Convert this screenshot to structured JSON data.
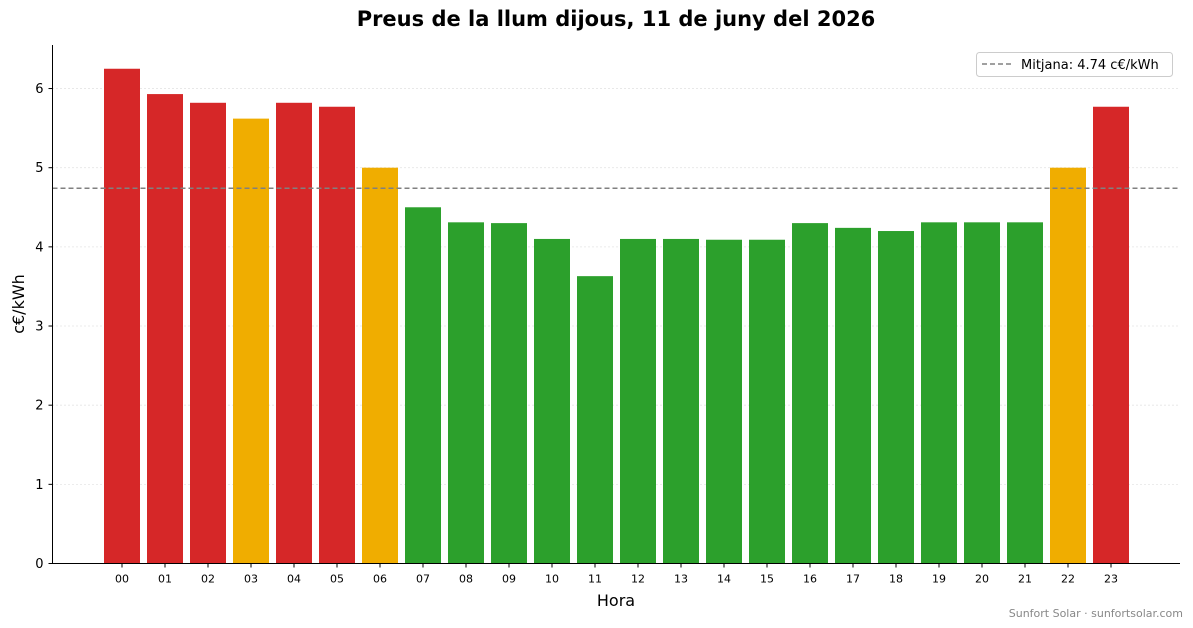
{
  "chart_data": {
    "type": "bar",
    "title": "Preus de la llum dijous, 11 de juny del 2026",
    "xlabel": "Hora",
    "ylabel": "c€/kWh",
    "ylim": [
      0,
      6.55
    ],
    "yticks": [
      0,
      1,
      2,
      3,
      4,
      5,
      6
    ],
    "categories": [
      "00",
      "01",
      "02",
      "03",
      "04",
      "05",
      "06",
      "07",
      "08",
      "09",
      "10",
      "11",
      "12",
      "13",
      "14",
      "15",
      "16",
      "17",
      "18",
      "19",
      "20",
      "21",
      "22",
      "23"
    ],
    "values": [
      6.25,
      5.93,
      5.82,
      5.62,
      5.82,
      5.77,
      5.0,
      4.5,
      4.31,
      4.3,
      4.1,
      3.63,
      4.1,
      4.1,
      4.09,
      4.09,
      4.3,
      4.24,
      4.2,
      4.31,
      4.31,
      4.31,
      5.0,
      5.77
    ],
    "bar_levels": [
      "high",
      "high",
      "high",
      "mid",
      "high",
      "high",
      "mid",
      "low",
      "low",
      "low",
      "low",
      "low",
      "low",
      "low",
      "low",
      "low",
      "low",
      "low",
      "low",
      "low",
      "low",
      "low",
      "mid",
      "high"
    ],
    "level_colors": {
      "high": "#d62728",
      "mid": "#f0ad00",
      "low": "#2ca02c"
    },
    "mean_line": {
      "value": 4.74,
      "label": "Mitjana: 4.74 c€/kWh",
      "color": "#808080",
      "style": "dashed"
    },
    "legend_position": "top-right",
    "grid": "horizontal dotted",
    "footer": "Sunfort Solar · sunfortsolar.com"
  }
}
